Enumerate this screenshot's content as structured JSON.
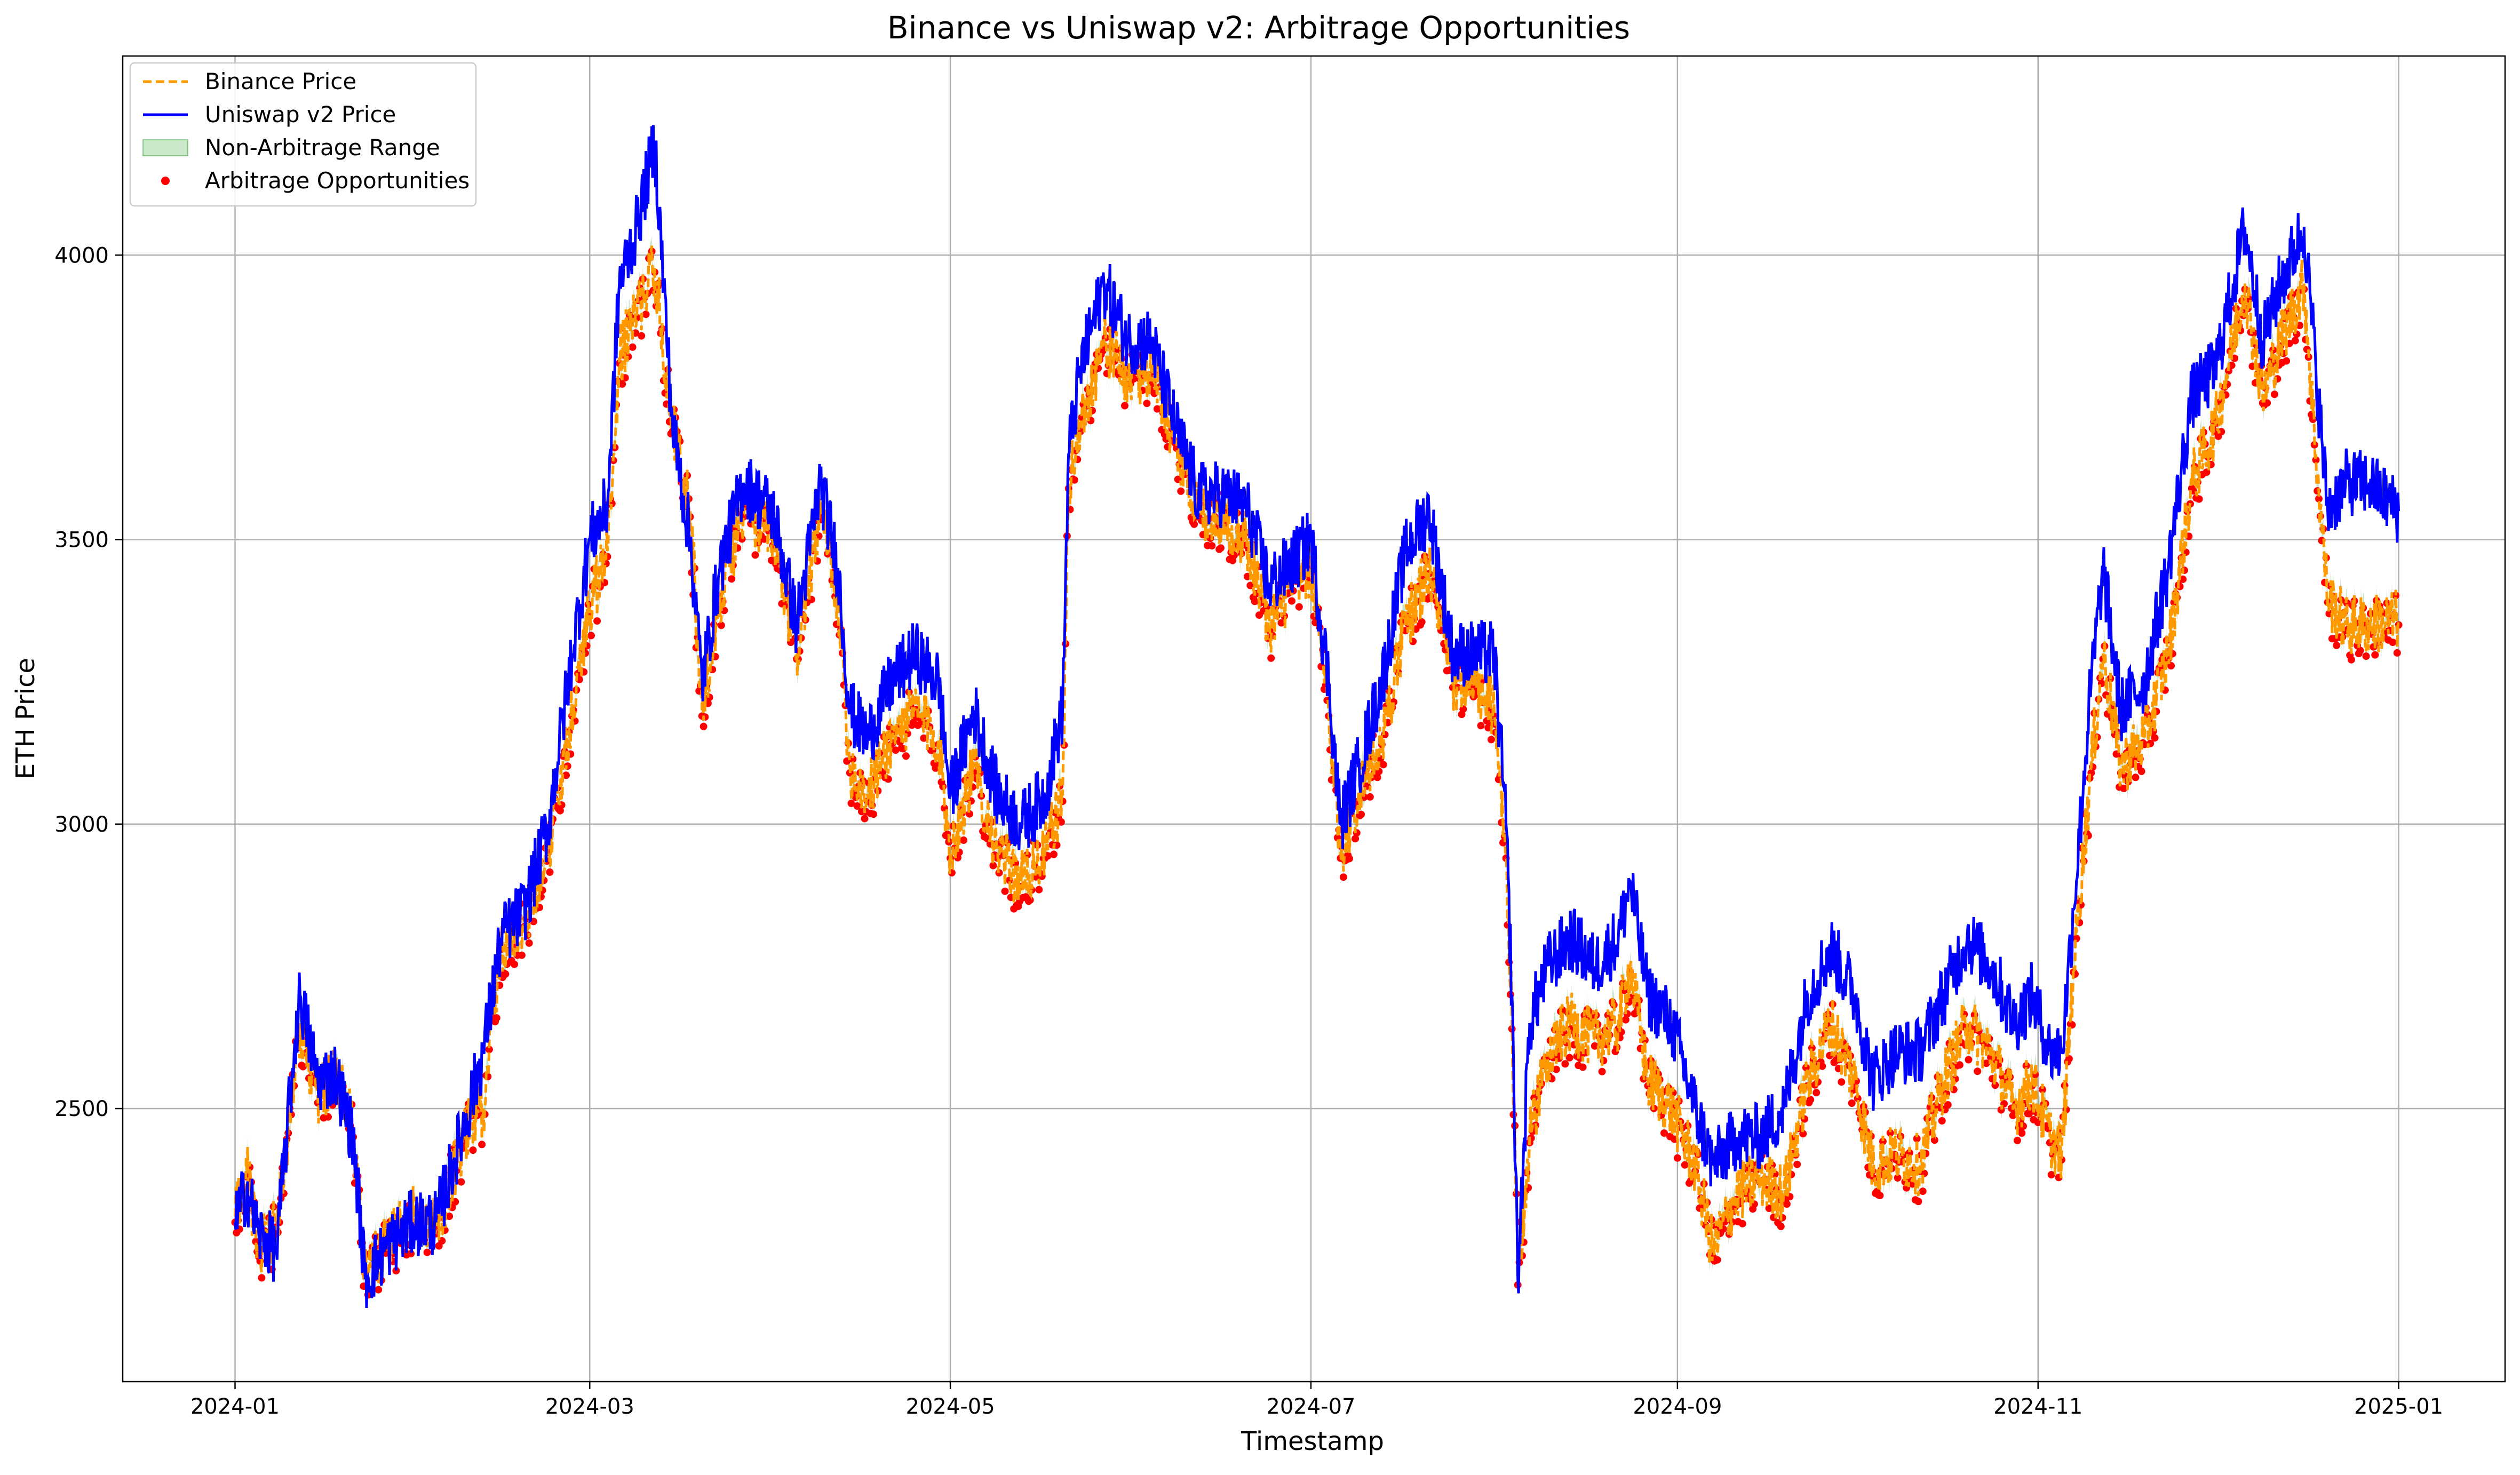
{
  "chart_data": {
    "type": "line",
    "title": "Binance vs Uniswap v2: Arbitrage Opportunities",
    "xlabel": "Timestamp",
    "ylabel": "ETH Price",
    "x_range": [
      "2023-12-13",
      "2025-01-19"
    ],
    "ylim": [
      2020,
      4350
    ],
    "x_ticks": [
      "2024-01",
      "2024-03",
      "2024-05",
      "2024-07",
      "2024-09",
      "2024-11",
      "2025-01"
    ],
    "y_ticks": [
      2500,
      3000,
      3500,
      4000
    ],
    "grid": true,
    "legend_position": "top-left",
    "series": [
      {
        "name": "Binance Price",
        "style": "dashed",
        "color": "#ff9900",
        "points": [
          [
            "2024-01-01",
            2310
          ],
          [
            "2024-01-03",
            2390
          ],
          [
            "2024-01-05",
            2250
          ],
          [
            "2024-01-08",
            2290
          ],
          [
            "2024-01-11",
            2550
          ],
          [
            "2024-01-12",
            2650
          ],
          [
            "2024-01-15",
            2520
          ],
          [
            "2024-01-18",
            2560
          ],
          [
            "2024-01-21",
            2460
          ],
          [
            "2024-01-23",
            2220
          ],
          [
            "2024-01-27",
            2260
          ],
          [
            "2024-01-31",
            2310
          ],
          [
            "2024-02-04",
            2290
          ],
          [
            "2024-02-09",
            2460
          ],
          [
            "2024-02-12",
            2500
          ],
          [
            "2024-02-15",
            2790
          ],
          [
            "2024-02-19",
            2830
          ],
          [
            "2024-02-23",
            2960
          ],
          [
            "2024-02-27",
            3200
          ],
          [
            "2024-03-01",
            3380
          ],
          [
            "2024-03-04",
            3480
          ],
          [
            "2024-03-06",
            3820
          ],
          [
            "2024-03-09",
            3900
          ],
          [
            "2024-03-12",
            3980
          ],
          [
            "2024-03-15",
            3700
          ],
          [
            "2024-03-18",
            3550
          ],
          [
            "2024-03-20",
            3200
          ],
          [
            "2024-03-23",
            3400
          ],
          [
            "2024-03-27",
            3550
          ],
          [
            "2024-04-01",
            3500
          ],
          [
            "2024-04-05",
            3300
          ],
          [
            "2024-04-09",
            3550
          ],
          [
            "2024-04-12",
            3400
          ],
          [
            "2024-04-14",
            3100
          ],
          [
            "2024-04-17",
            3050
          ],
          [
            "2024-04-21",
            3150
          ],
          [
            "2024-04-25",
            3200
          ],
          [
            "2024-04-29",
            3150
          ],
          [
            "2024-05-01",
            2950
          ],
          [
            "2024-05-05",
            3100
          ],
          [
            "2024-05-09",
            2950
          ],
          [
            "2024-05-13",
            2900
          ],
          [
            "2024-05-17",
            2950
          ],
          [
            "2024-05-20",
            3050
          ],
          [
            "2024-05-21",
            3600
          ],
          [
            "2024-05-23",
            3700
          ],
          [
            "2024-05-27",
            3850
          ],
          [
            "2024-05-31",
            3780
          ],
          [
            "2024-06-04",
            3800
          ],
          [
            "2024-06-08",
            3680
          ],
          [
            "2024-06-12",
            3550
          ],
          [
            "2024-06-16",
            3540
          ],
          [
            "2024-06-20",
            3500
          ],
          [
            "2024-06-24",
            3350
          ],
          [
            "2024-06-28",
            3420
          ],
          [
            "2024-07-01",
            3450
          ],
          [
            "2024-07-04",
            3200
          ],
          [
            "2024-07-06",
            2950
          ],
          [
            "2024-07-09",
            3050
          ],
          [
            "2024-07-13",
            3150
          ],
          [
            "2024-07-17",
            3350
          ],
          [
            "2024-07-21",
            3450
          ],
          [
            "2024-07-25",
            3250
          ],
          [
            "2024-07-28",
            3250
          ],
          [
            "2024-08-01",
            3200
          ],
          [
            "2024-08-03",
            2950
          ],
          [
            "2024-08-04",
            2650
          ],
          [
            "2024-08-05",
            2200
          ],
          [
            "2024-08-07",
            2450
          ],
          [
            "2024-08-10",
            2600
          ],
          [
            "2024-08-14",
            2650
          ],
          [
            "2024-08-18",
            2620
          ],
          [
            "2024-08-22",
            2650
          ],
          [
            "2024-08-24",
            2750
          ],
          [
            "2024-08-27",
            2550
          ],
          [
            "2024-08-31",
            2500
          ],
          [
            "2024-09-04",
            2400
          ],
          [
            "2024-09-07",
            2250
          ],
          [
            "2024-09-11",
            2350
          ],
          [
            "2024-09-15",
            2380
          ],
          [
            "2024-09-19",
            2350
          ],
          [
            "2024-09-23",
            2550
          ],
          [
            "2024-09-27",
            2650
          ],
          [
            "2024-10-01",
            2550
          ],
          [
            "2024-10-04",
            2400
          ],
          [
            "2024-10-08",
            2420
          ],
          [
            "2024-10-12",
            2400
          ],
          [
            "2024-10-16",
            2550
          ],
          [
            "2024-10-20",
            2650
          ],
          [
            "2024-10-24",
            2600
          ],
          [
            "2024-10-28",
            2500
          ],
          [
            "2024-10-31",
            2550
          ],
          [
            "2024-11-03",
            2450
          ],
          [
            "2024-11-05",
            2420
          ],
          [
            "2024-11-07",
            2750
          ],
          [
            "2024-11-10",
            3100
          ],
          [
            "2024-11-12",
            3300
          ],
          [
            "2024-11-15",
            3100
          ],
          [
            "2024-11-19",
            3150
          ],
          [
            "2024-11-23",
            3300
          ],
          [
            "2024-11-27",
            3600
          ],
          [
            "2024-12-01",
            3700
          ],
          [
            "2024-12-04",
            3850
          ],
          [
            "2024-12-06",
            3950
          ],
          [
            "2024-12-09",
            3750
          ],
          [
            "2024-12-12",
            3850
          ],
          [
            "2024-12-16",
            3950
          ],
          [
            "2024-12-18",
            3650
          ],
          [
            "2024-12-20",
            3400
          ],
          [
            "2024-12-23",
            3350
          ],
          [
            "2024-12-27",
            3350
          ],
          [
            "2025-01-01",
            3360
          ]
        ]
      },
      {
        "name": "Uniswap v2 Price",
        "style": "solid",
        "color": "#0000ff",
        "points": [
          [
            "2024-01-01",
            2300
          ],
          [
            "2024-01-03",
            2360
          ],
          [
            "2024-01-05",
            2280
          ],
          [
            "2024-01-08",
            2250
          ],
          [
            "2024-01-11",
            2600
          ],
          [
            "2024-01-12",
            2700
          ],
          [
            "2024-01-15",
            2550
          ],
          [
            "2024-01-18",
            2560
          ],
          [
            "2024-01-21",
            2450
          ],
          [
            "2024-01-23",
            2200
          ],
          [
            "2024-01-27",
            2260
          ],
          [
            "2024-01-31",
            2300
          ],
          [
            "2024-02-04",
            2300
          ],
          [
            "2024-02-09",
            2480
          ],
          [
            "2024-02-12",
            2600
          ],
          [
            "2024-02-15",
            2800
          ],
          [
            "2024-02-19",
            2850
          ],
          [
            "2024-02-23",
            3000
          ],
          [
            "2024-02-27",
            3300
          ],
          [
            "2024-03-01",
            3500
          ],
          [
            "2024-03-04",
            3560
          ],
          [
            "2024-03-06",
            3950
          ],
          [
            "2024-03-09",
            4050
          ],
          [
            "2024-03-12",
            4200
          ],
          [
            "2024-03-15",
            3700
          ],
          [
            "2024-03-18",
            3500
          ],
          [
            "2024-03-20",
            3250
          ],
          [
            "2024-03-23",
            3450
          ],
          [
            "2024-03-27",
            3600
          ],
          [
            "2024-04-01",
            3550
          ],
          [
            "2024-04-05",
            3350
          ],
          [
            "2024-04-09",
            3600
          ],
          [
            "2024-04-12",
            3450
          ],
          [
            "2024-04-14",
            3200
          ],
          [
            "2024-04-17",
            3150
          ],
          [
            "2024-04-21",
            3250
          ],
          [
            "2024-04-25",
            3300
          ],
          [
            "2024-04-29",
            3250
          ],
          [
            "2024-05-01",
            3050
          ],
          [
            "2024-05-05",
            3200
          ],
          [
            "2024-05-09",
            3050
          ],
          [
            "2024-05-13",
            3000
          ],
          [
            "2024-05-17",
            3050
          ],
          [
            "2024-05-20",
            3200
          ],
          [
            "2024-05-21",
            3650
          ],
          [
            "2024-05-23",
            3800
          ],
          [
            "2024-05-27",
            3950
          ],
          [
            "2024-05-31",
            3850
          ],
          [
            "2024-06-04",
            3850
          ],
          [
            "2024-06-08",
            3700
          ],
          [
            "2024-06-12",
            3580
          ],
          [
            "2024-06-16",
            3580
          ],
          [
            "2024-06-20",
            3560
          ],
          [
            "2024-06-24",
            3420
          ],
          [
            "2024-06-28",
            3460
          ],
          [
            "2024-07-01",
            3500
          ],
          [
            "2024-07-04",
            3250
          ],
          [
            "2024-07-06",
            3000
          ],
          [
            "2024-07-09",
            3100
          ],
          [
            "2024-07-13",
            3250
          ],
          [
            "2024-07-17",
            3480
          ],
          [
            "2024-07-21",
            3550
          ],
          [
            "2024-07-25",
            3300
          ],
          [
            "2024-07-28",
            3300
          ],
          [
            "2024-08-01",
            3300
          ],
          [
            "2024-08-03",
            3000
          ],
          [
            "2024-08-04",
            2700
          ],
          [
            "2024-08-05",
            2200
          ],
          [
            "2024-08-07",
            2650
          ],
          [
            "2024-08-10",
            2750
          ],
          [
            "2024-08-14",
            2800
          ],
          [
            "2024-08-18",
            2750
          ],
          [
            "2024-08-22",
            2800
          ],
          [
            "2024-08-24",
            2900
          ],
          [
            "2024-08-27",
            2700
          ],
          [
            "2024-08-31",
            2650
          ],
          [
            "2024-09-04",
            2500
          ],
          [
            "2024-09-07",
            2400
          ],
          [
            "2024-09-11",
            2450
          ],
          [
            "2024-09-15",
            2450
          ],
          [
            "2024-09-19",
            2500
          ],
          [
            "2024-09-23",
            2700
          ],
          [
            "2024-09-27",
            2780
          ],
          [
            "2024-10-01",
            2700
          ],
          [
            "2024-10-04",
            2550
          ],
          [
            "2024-10-08",
            2600
          ],
          [
            "2024-10-12",
            2600
          ],
          [
            "2024-10-16",
            2700
          ],
          [
            "2024-10-20",
            2800
          ],
          [
            "2024-10-24",
            2750
          ],
          [
            "2024-10-28",
            2650
          ],
          [
            "2024-10-31",
            2700
          ],
          [
            "2024-11-03",
            2600
          ],
          [
            "2024-11-05",
            2600
          ],
          [
            "2024-11-07",
            2850
          ],
          [
            "2024-11-10",
            3250
          ],
          [
            "2024-11-12",
            3450
          ],
          [
            "2024-11-15",
            3200
          ],
          [
            "2024-11-19",
            3250
          ],
          [
            "2024-11-23",
            3450
          ],
          [
            "2024-11-27",
            3750
          ],
          [
            "2024-12-01",
            3800
          ],
          [
            "2024-12-04",
            3950
          ],
          [
            "2024-12-06",
            4050
          ],
          [
            "2024-12-09",
            3850
          ],
          [
            "2024-12-12",
            3950
          ],
          [
            "2024-12-16",
            4050
          ],
          [
            "2024-12-18",
            3800
          ],
          [
            "2024-12-20",
            3550
          ],
          [
            "2024-12-23",
            3600
          ],
          [
            "2024-12-27",
            3600
          ],
          [
            "2025-01-01",
            3550
          ]
        ]
      }
    ],
    "legend": [
      {
        "label": "Binance Price",
        "marker": "dashed-line",
        "color": "#ff9900"
      },
      {
        "label": "Uniswap v2 Price",
        "marker": "solid-line",
        "color": "#0000ff"
      },
      {
        "label": "Non-Arbitrage Range",
        "marker": "filled-box",
        "color": "#2ca02c"
      },
      {
        "label": "Arbitrage Opportunities",
        "marker": "dot",
        "color": "#ff0000"
      }
    ]
  }
}
